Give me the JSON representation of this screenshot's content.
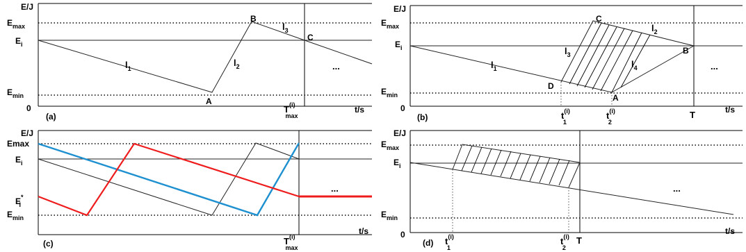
{
  "panel_a": {
    "caption": "(a)",
    "y_axis": "E/J",
    "x_axis": "t/s",
    "origin": "0",
    "emax": "E",
    "emax_sub": "max",
    "ei": "E",
    "ei_sub": "i",
    "emin": "E",
    "emin_sub": "min",
    "tmax": "T",
    "tmax_sup": "(i)",
    "tmax_sub": "max",
    "line1": "l",
    "line1_sub": "1",
    "line2": "l",
    "line2_sub": "2",
    "line3": "l",
    "line3_sub": "3",
    "point_a": "A",
    "point_b": "B",
    "point_c": "C",
    "ellipsis": "..."
  },
  "panel_b": {
    "caption": "(b)",
    "y_axis": "E/J",
    "x_axis": "t/s",
    "origin": "0",
    "emax": "E",
    "emax_sub": "max",
    "ei": "E",
    "ei_sub": "i",
    "emin": "E",
    "emin_sub": "min",
    "t1": "t",
    "t1_sup": "(i)",
    "t1_sub": "1",
    "t2": "t",
    "t2_sup": "(i)",
    "t2_sub": "2",
    "t_end": "T",
    "line1": "l",
    "line1_sub": "1",
    "line2": "l",
    "line2_sub": "2",
    "line3": "l",
    "line3_sub": "3",
    "line4": "l",
    "line4_sub": "4",
    "point_a": "A",
    "point_b": "B",
    "point_c": "C",
    "point_d": "D",
    "ellipsis": "..."
  },
  "panel_c": {
    "caption": "(c)",
    "y_axis": "E/J",
    "x_axis": "t/s",
    "emax": "Emax",
    "ei": "E",
    "ei_sub": "i",
    "ei_star": "E",
    "ei_star_sub": "i",
    "ei_star_sup": "*",
    "emin": "E",
    "emin_sub": "min",
    "tmax": "T",
    "tmax_sup": "(i)",
    "tmax_sub": "max",
    "ellipsis": "...",
    "colors": {
      "red": "#ee1c1c",
      "blue": "#1e90d0",
      "black": "#000000"
    }
  },
  "panel_d": {
    "caption": "(d)",
    "y_axis": "E/J",
    "x_axis": "t/s",
    "origin": "0",
    "emax": "E",
    "emax_sub": "max",
    "ei": "E",
    "ei_sub": "i",
    "emin": "E",
    "emin_sub": "min",
    "t1": "t",
    "t1_sup": "(i)",
    "t1_sub": "1",
    "t2": "t",
    "t2_sup": "(i)",
    "t2_sub": "2",
    "t_end": "T",
    "ellipsis": "..."
  }
}
